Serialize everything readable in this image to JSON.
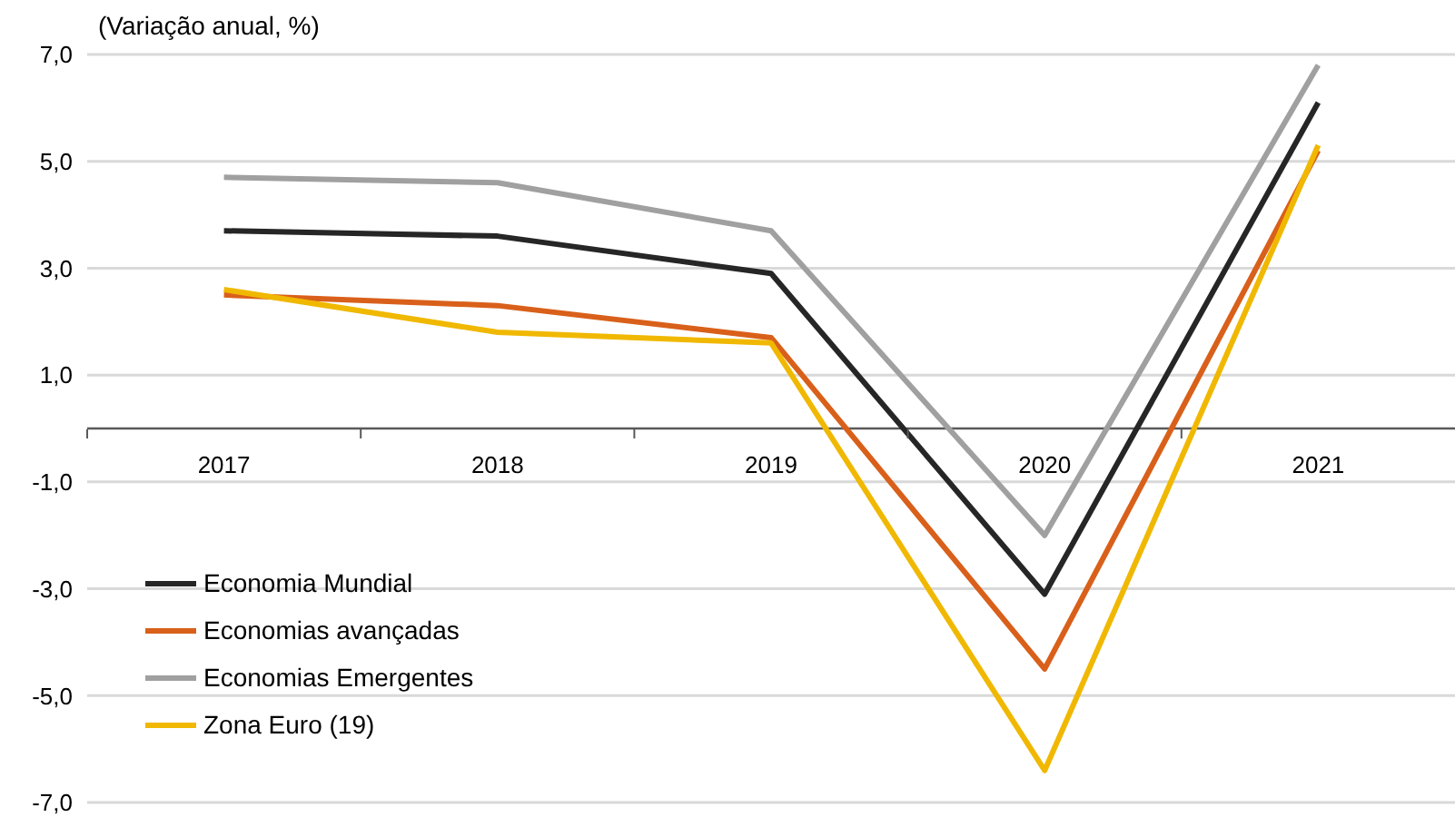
{
  "chart_data": {
    "type": "line",
    "ylabel": "(Variação anual, %)",
    "categories": [
      "2017",
      "2018",
      "2019",
      "2020",
      "2021"
    ],
    "series": [
      {
        "name": "Economia Mundial",
        "color": "#262626",
        "values": [
          3.7,
          3.6,
          2.9,
          -3.1,
          6.1
        ]
      },
      {
        "name": "Economias avançadas",
        "color": "#d9601a",
        "values": [
          2.5,
          2.3,
          1.7,
          -4.5,
          5.2
        ]
      },
      {
        "name": "Economias Emergentes",
        "color": "#a0a0a0",
        "values": [
          4.7,
          4.6,
          3.7,
          -2.0,
          6.8
        ]
      },
      {
        "name": "Zona Euro (19)",
        "color": "#f0b800",
        "values": [
          2.6,
          1.8,
          1.6,
          -6.4,
          5.3
        ]
      }
    ],
    "ylim": [
      -7,
      7
    ],
    "yticks": [
      {
        "value": -7,
        "label": "-7,0"
      },
      {
        "value": -5,
        "label": "-5,0"
      },
      {
        "value": -3,
        "label": "-3,0"
      },
      {
        "value": -1,
        "label": "-1,0"
      },
      {
        "value": 1,
        "label": "1,0"
      },
      {
        "value": 3,
        "label": "3,0"
      },
      {
        "value": 5,
        "label": "5,0"
      },
      {
        "value": 7,
        "label": "7,0"
      }
    ],
    "grid": "y",
    "legend": "bottom left",
    "marker": "none",
    "line_style": "solid"
  }
}
